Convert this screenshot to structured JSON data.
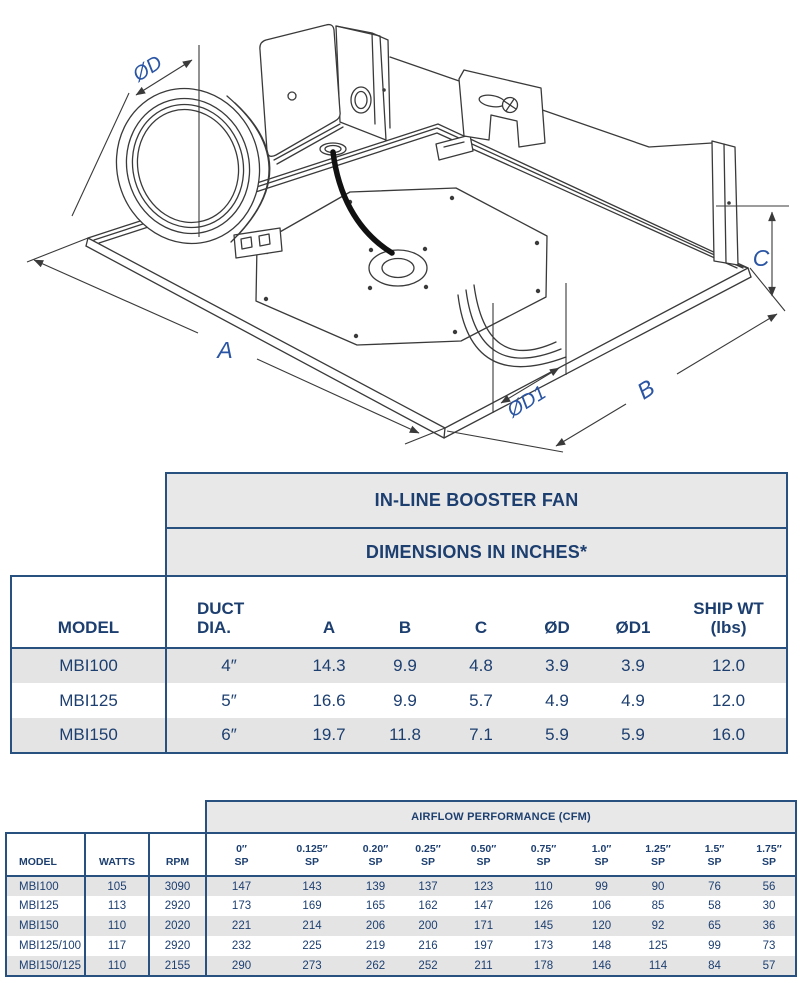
{
  "diagram": {
    "description": "isometric line drawing of in-line booster fan with dimension callouts",
    "labels": {
      "od": "ØD",
      "a": "A",
      "b": "B",
      "c": "C",
      "od1": "ØD1"
    }
  },
  "dim_table": {
    "title": "IN-LINE BOOSTER FAN",
    "subtitle": "DIMENSIONS IN INCHES*",
    "headers": [
      "MODEL",
      "DUCT\nDIA.",
      "A",
      "B",
      "C",
      "ØD",
      "ØD1",
      "SHIP WT\n(lbs)"
    ],
    "rows": [
      [
        "MBI100",
        "4″",
        "14.3",
        "9.9",
        "4.8",
        "3.9",
        "3.9",
        "12.0"
      ],
      [
        "MBI125",
        "5″",
        "16.6",
        "9.9",
        "5.7",
        "4.9",
        "4.9",
        "12.0"
      ],
      [
        "MBI150",
        "6″",
        "19.7",
        "11.8",
        "7.1",
        "5.9",
        "5.9",
        "16.0"
      ]
    ]
  },
  "perf_table": {
    "title": "AIRFLOW PERFORMANCE (CFM)",
    "left_headers": [
      "MODEL",
      "WATTS",
      "RPM"
    ],
    "sp_headers": [
      "0″",
      "0.125″",
      "0.20″",
      "0.25″",
      "0.50″",
      "0.75″",
      "1.0″",
      "1.25″",
      "1.5″",
      "1.75″"
    ],
    "sp_suffix": "SP",
    "rows": [
      [
        "MBI100",
        "105",
        "3090",
        "147",
        "143",
        "139",
        "137",
        "123",
        "110",
        "99",
        "90",
        "76",
        "56"
      ],
      [
        "MBI125",
        "113",
        "2920",
        "173",
        "169",
        "165",
        "162",
        "147",
        "126",
        "106",
        "85",
        "58",
        "30"
      ],
      [
        "MBI150",
        "110",
        "2020",
        "221",
        "214",
        "206",
        "200",
        "171",
        "145",
        "120",
        "92",
        "65",
        "36"
      ],
      [
        "MBI125/100",
        "117",
        "2920",
        "232",
        "225",
        "219",
        "216",
        "197",
        "173",
        "148",
        "125",
        "99",
        "73"
      ],
      [
        "MBI150/125",
        "110",
        "2155",
        "290",
        "273",
        "262",
        "252",
        "211",
        "178",
        "146",
        "114",
        "84",
        "57"
      ]
    ]
  },
  "colors": {
    "navy_text": "#1d3f70",
    "table_border": "#28517f",
    "band_gray": "#e8e8e8",
    "row_gray": "#e4e4e5",
    "dim_label_blue": "#2a55a4",
    "line_dark": "#3a3a3a"
  }
}
